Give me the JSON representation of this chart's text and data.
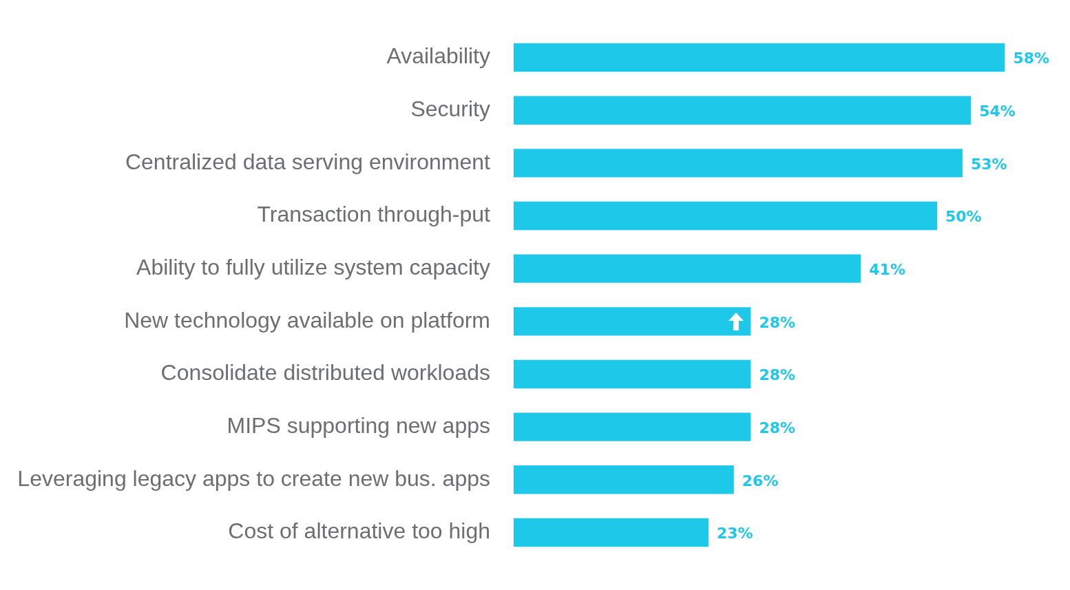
{
  "chart_data": {
    "type": "bar",
    "orientation": "horizontal",
    "categories": [
      "Availability",
      "Security",
      "Centralized data serving environment",
      "Transaction through-put",
      "Ability to fully utilize system capacity",
      "New technology available on platform",
      "Consolidate distributed workloads",
      "MIPS supporting new apps",
      "Leveraging legacy apps to create new bus. apps",
      "Cost of alternative too high"
    ],
    "values": [
      58,
      54,
      53,
      50,
      41,
      28,
      28,
      28,
      26,
      23
    ],
    "value_labels": [
      "58%",
      "54%",
      "53%",
      "50%",
      "41%",
      "28%",
      "28%",
      "28%",
      "26%",
      "23%"
    ],
    "color": "#1ec8e8",
    "legend": false
  }
}
